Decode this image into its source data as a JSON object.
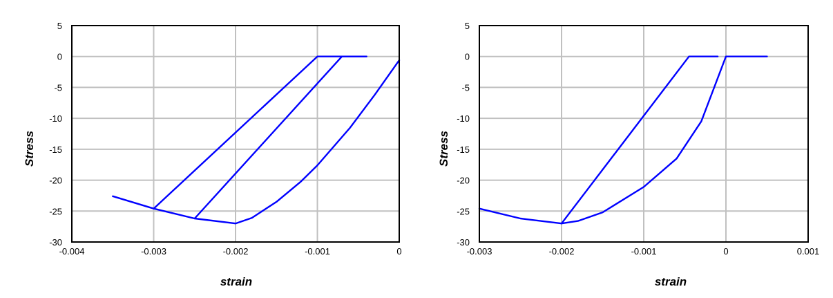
{
  "chart_data": [
    {
      "type": "line",
      "xlabel": "strain",
      "ylabel": "Stress",
      "xlim": [
        -0.004,
        0
      ],
      "ylim": [
        -30,
        5
      ],
      "xticks": [
        -0.004,
        -0.003,
        -0.002,
        -0.001,
        0
      ],
      "xtick_labels": [
        "-0.004",
        "-0.003",
        "-0.002",
        "-0.001",
        "0"
      ],
      "yticks": [
        5,
        0,
        -5,
        -10,
        -15,
        -20,
        -25,
        -30
      ],
      "ytick_labels": [
        "5",
        "0",
        "-5",
        "-10",
        "-15",
        "-20",
        "-25",
        "-30"
      ],
      "grid": true,
      "color": "#0000ff",
      "series": [
        {
          "points": [
            [
              0,
              -0.6
            ],
            [
              -0.0003,
              -6.2
            ],
            [
              -0.0006,
              -11.5
            ],
            [
              -0.001,
              -17.6
            ],
            [
              -0.0012,
              -20.2
            ],
            [
              -0.0015,
              -23.5
            ],
            [
              -0.0018,
              -26.1
            ],
            [
              -0.002,
              -27
            ],
            [
              -0.0025,
              -26.2
            ],
            [
              -0.003,
              -24.6
            ],
            [
              -0.0035,
              -22.6
            ]
          ]
        },
        {
          "points": [
            [
              -0.003,
              -24.6
            ],
            [
              -0.001,
              0
            ],
            [
              -0.0004,
              0
            ]
          ]
        },
        {
          "points": [
            [
              -0.0025,
              -26.2
            ],
            [
              -0.0007,
              0
            ],
            [
              -0.0004,
              0
            ]
          ]
        }
      ]
    },
    {
      "type": "line",
      "xlabel": "strain",
      "ylabel": "Stress",
      "xlim": [
        -0.003,
        0.001
      ],
      "ylim": [
        -30,
        5
      ],
      "xticks": [
        -0.003,
        -0.002,
        -0.001,
        0,
        0.001
      ],
      "xtick_labels": [
        "-0.003",
        "-0.002",
        "-0.001",
        "0",
        "0.001"
      ],
      "yticks": [
        5,
        0,
        -5,
        -10,
        -15,
        -20,
        -25,
        -30
      ],
      "ytick_labels": [
        "5",
        "0",
        "-5",
        "-10",
        "-15",
        "-20",
        "-25",
        "-30"
      ],
      "grid": true,
      "color": "#0000ff",
      "series": [
        {
          "points": [
            [
              0.0005,
              0
            ],
            [
              0,
              0
            ],
            [
              -0.0003,
              -10.5
            ],
            [
              -0.0006,
              -16.5
            ],
            [
              -0.001,
              -21.1
            ],
            [
              -0.0015,
              -25.2
            ],
            [
              -0.0018,
              -26.6
            ],
            [
              -0.002,
              -27
            ],
            [
              -0.0025,
              -26.2
            ],
            [
              -0.003,
              -24.6
            ]
          ]
        },
        {
          "points": [
            [
              -0.002,
              -27
            ],
            [
              -0.00045,
              0
            ],
            [
              -0.0001,
              0
            ]
          ]
        }
      ]
    }
  ]
}
